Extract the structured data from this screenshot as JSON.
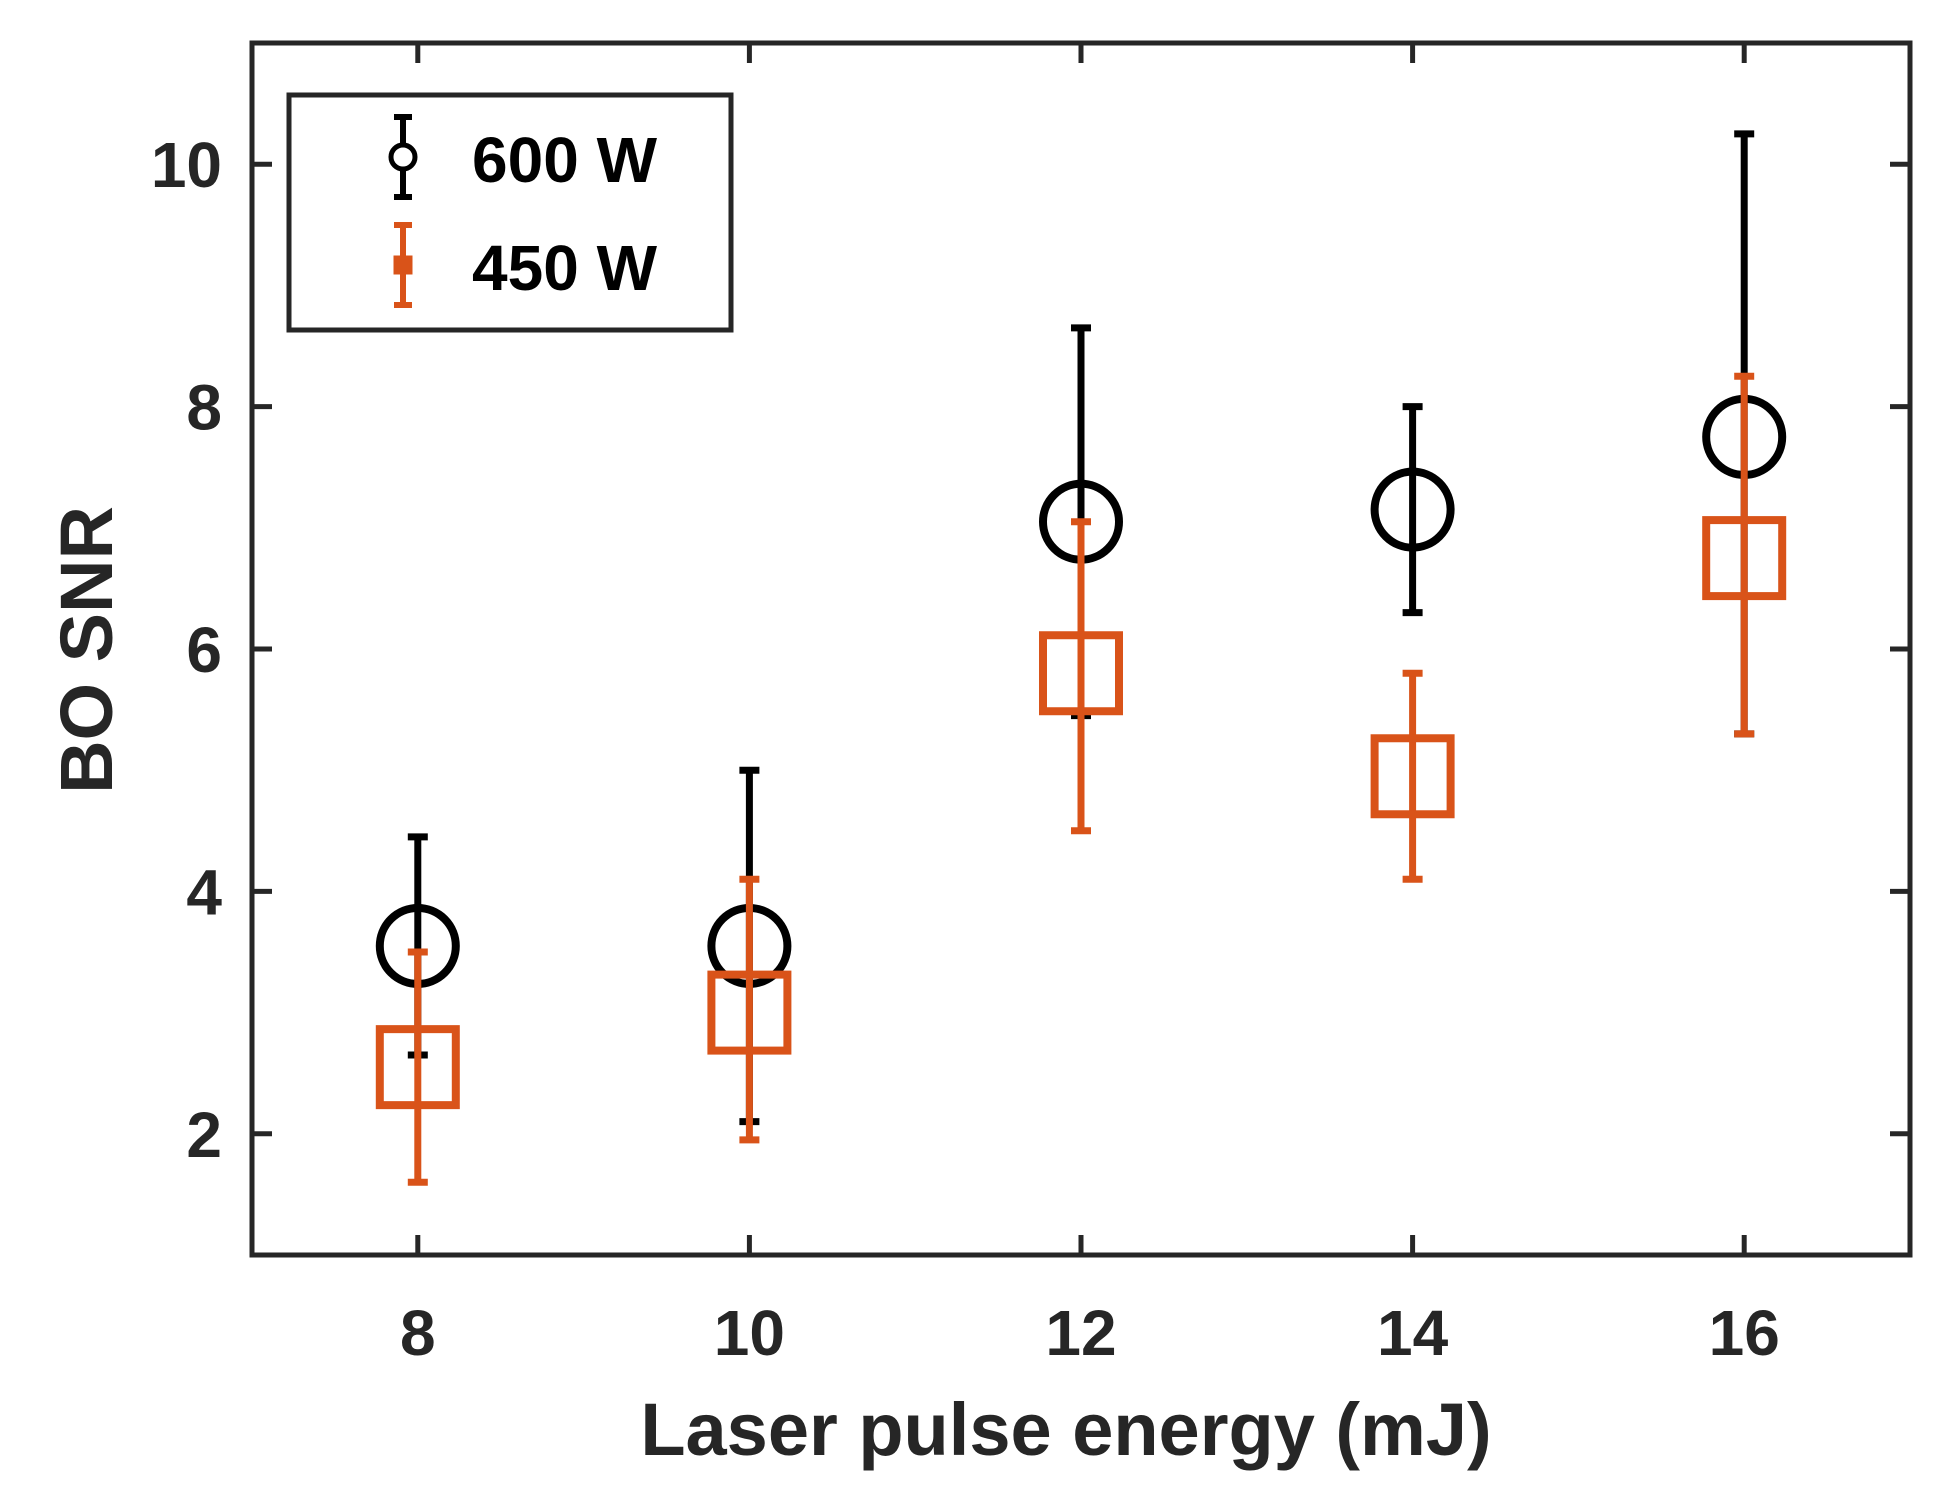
{
  "chart_data": {
    "type": "scatter",
    "title": "",
    "xlabel": "Laser pulse energy (mJ)",
    "ylabel": "BO SNR",
    "xlim": [
      7,
      17
    ],
    "ylim": [
      1,
      11
    ],
    "x_ticks": [
      8,
      10,
      12,
      14,
      16
    ],
    "y_ticks": [
      2,
      4,
      6,
      8,
      10
    ],
    "x_tick_labels": [
      "8",
      "10",
      "12",
      "14",
      "16"
    ],
    "y_tick_labels": [
      "2",
      "4",
      "6",
      "8",
      "10"
    ],
    "grid": false,
    "legend_position": "top-left",
    "series": [
      {
        "name": "600 W",
        "marker": "circle",
        "color": "#000000",
        "x": [
          8,
          10,
          12,
          14,
          16
        ],
        "y": [
          3.55,
          3.55,
          7.05,
          7.15,
          7.75
        ],
        "err_low": [
          2.65,
          2.1,
          5.45,
          6.3,
          5.3
        ],
        "err_high": [
          4.45,
          5.0,
          8.65,
          8.0,
          10.25
        ]
      },
      {
        "name": "450 W",
        "marker": "square",
        "color": "#D95319",
        "x": [
          8,
          10,
          12,
          14,
          16
        ],
        "y": [
          2.55,
          3.0,
          5.8,
          4.95,
          6.75
        ],
        "err_low": [
          1.6,
          1.95,
          4.5,
          4.1,
          5.3
        ],
        "err_high": [
          3.5,
          4.1,
          7.05,
          5.8,
          8.25
        ]
      }
    ]
  }
}
